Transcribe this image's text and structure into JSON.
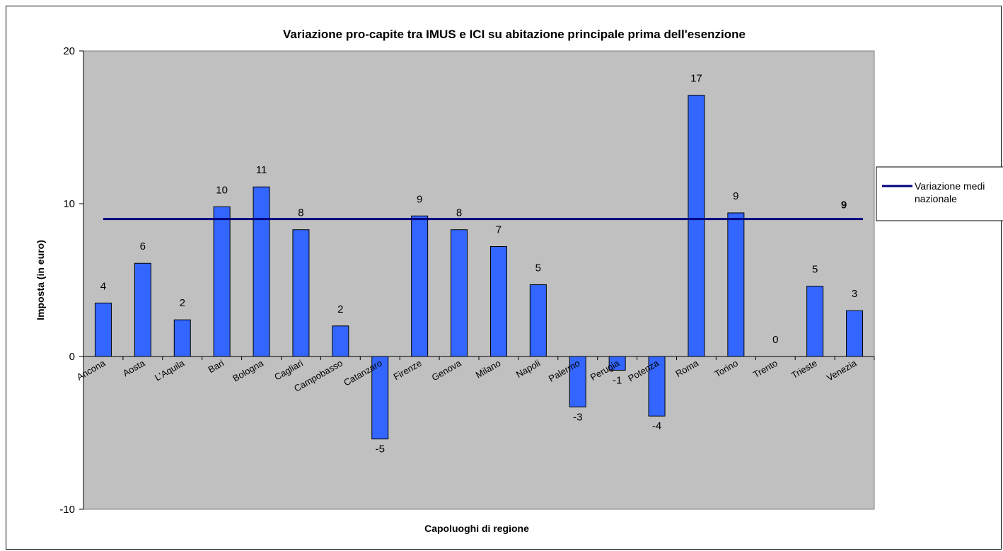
{
  "chart_data": {
    "type": "bar",
    "title": "Variazione pro-capite tra IMUS e ICI su abitazione principale prima dell'esenzione",
    "xlabel": "Capoluoghi di regione",
    "ylabel": "Imposta (in euro)",
    "ylim": [
      -10,
      20
    ],
    "yticks": [
      "-10",
      "0",
      "10",
      "20"
    ],
    "grid": false,
    "legend_position": "right",
    "categories": [
      "Ancona",
      "Aosta",
      "L'Aquila",
      "Bari",
      "Bologna",
      "Cagliari",
      "Campobasso",
      "Catanzaro",
      "Firenze",
      "Genova",
      "Milano",
      "Napoli",
      "Palermo",
      "Perugia",
      "Potenza",
      "Roma",
      "Torino",
      "Trento",
      "Trieste",
      "Venezia"
    ],
    "series": [
      {
        "type": "bar",
        "values": [
          3.5,
          6.1,
          2.4,
          9.8,
          11.1,
          8.3,
          2.0,
          -5.4,
          9.2,
          8.3,
          7.2,
          4.7,
          -3.3,
          -0.9,
          -3.9,
          17.1,
          9.4,
          0,
          4.6,
          3.0
        ],
        "labels": [
          "4",
          "6",
          "2",
          "10",
          "11",
          "8",
          "2",
          "-5",
          "9",
          "8",
          "7",
          "5",
          "-3",
          "-1",
          "-4",
          "17",
          "9",
          "0",
          "5",
          "3"
        ],
        "color": "#3366ff"
      },
      {
        "type": "line",
        "name": "Variazione medi nazionale",
        "value": 9,
        "end_label": "9",
        "color": "#000080"
      }
    ],
    "colors": {
      "plot_background": "#c0c0c0",
      "bar_fill": "#3366ff",
      "bar_stroke": "#000000",
      "mean_line": "#000080"
    }
  }
}
